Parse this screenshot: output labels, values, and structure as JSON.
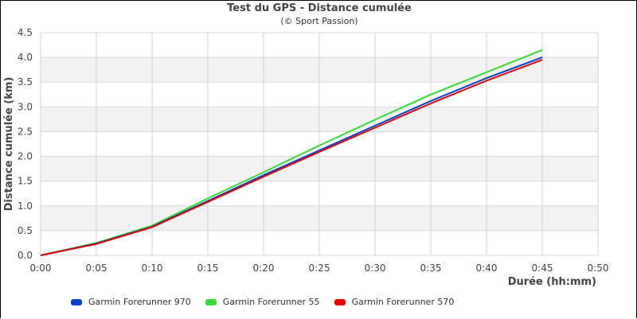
{
  "chart_data": {
    "type": "line",
    "title": "Test du GPS - Distance cumulée",
    "subtitle": "(© Sport Passion)",
    "xlabel": "Durée (hh:mm)",
    "ylabel": "Distance cumulée (km)",
    "x_ticks": [
      "0:00",
      "0:05",
      "0:10",
      "0:15",
      "0:20",
      "0:25",
      "0:30",
      "0:35",
      "0:40",
      "0:45",
      "0:50"
    ],
    "y_ticks": [
      "0.0",
      "0.5",
      "1.0",
      "1.5",
      "2.0",
      "2.5",
      "3.0",
      "3.5",
      "4.0",
      "4.5"
    ],
    "xlim": [
      0,
      50
    ],
    "ylim": [
      0,
      4.5
    ],
    "grid": true,
    "legend_position": "bottom",
    "x": [
      0,
      5,
      10,
      15,
      20,
      25,
      30,
      35,
      40,
      45
    ],
    "series": [
      {
        "name": "Garmin Forerunner 970",
        "color": "#0044cc",
        "values": [
          0,
          0.24,
          0.58,
          1.1,
          1.62,
          2.12,
          2.62,
          3.12,
          3.58,
          4.0
        ]
      },
      {
        "name": "Garmin Forerunner 55",
        "color": "#33dd33",
        "values": [
          0,
          0.25,
          0.6,
          1.15,
          1.68,
          2.22,
          2.74,
          3.25,
          3.7,
          4.15
        ]
      },
      {
        "name": "Garmin Forerunner 570",
        "color": "#ee0000",
        "values": [
          0,
          0.23,
          0.57,
          1.08,
          1.59,
          2.09,
          2.58,
          3.07,
          3.53,
          3.95
        ]
      }
    ]
  }
}
